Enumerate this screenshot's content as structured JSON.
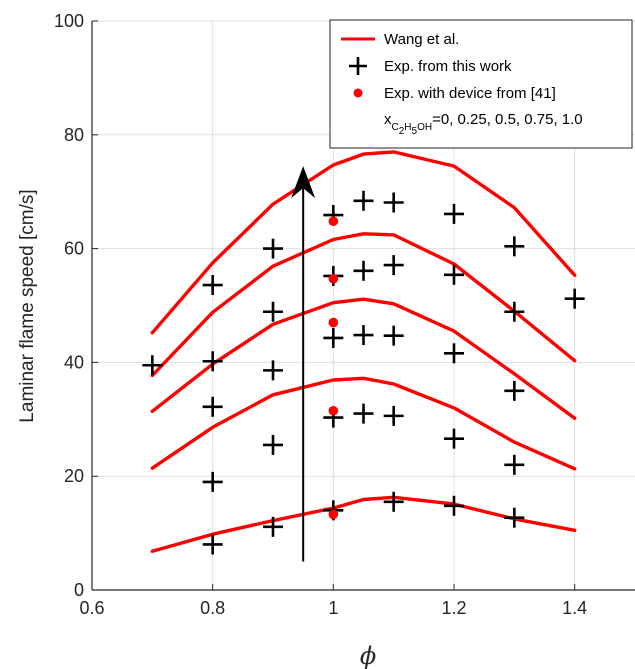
{
  "chart_data": {
    "type": "line",
    "xlabel": "ϕ",
    "ylabel": "Laminar flame speed [cm/s]",
    "xlim": [
      0.6,
      1.5
    ],
    "ylim": [
      0,
      100
    ],
    "xticks": [
      "0.6",
      "0.8",
      "1",
      "1.2",
      "1.4"
    ],
    "yticks": [
      "0",
      "20",
      "40",
      "60",
      "80",
      "100"
    ],
    "grid": true,
    "legend_position": "top-right",
    "legend": {
      "model_label": "Wang et al.",
      "exp_label": "Exp. from this work",
      "device_label": "Exp. with device from [41]",
      "x_prefix": "x",
      "sub_c": "C",
      "sub_2": "2",
      "sub_h": "H",
      "sub_5": "5",
      "sub_oh": "OH",
      "x_values": "=0, 0.25, 0.5, 0.75, 1.0"
    },
    "colors": {
      "model": "#ff0000",
      "exp": "#000000",
      "device": "#ff0000",
      "arrow": "#000000"
    },
    "model_x": [
      0.7,
      0.8,
      0.9,
      1.0,
      1.05,
      1.1,
      1.2,
      1.3,
      1.4
    ],
    "series": [
      {
        "model_y": [
          6.8,
          9.8,
          12.2,
          14.4,
          15.9,
          16.3,
          15.1,
          12.5,
          10.5
        ]
      },
      {
        "model_y": [
          21.4,
          28.6,
          34.3,
          36.9,
          37.2,
          36.2,
          32.0,
          26.0,
          21.3
        ]
      },
      {
        "model_y": [
          31.4,
          39.7,
          46.7,
          50.5,
          51.1,
          50.3,
          45.5,
          38.0,
          30.2
        ]
      },
      {
        "model_y": [
          37.7,
          48.8,
          56.9,
          61.6,
          62.6,
          62.4,
          57.3,
          49.0,
          40.3
        ]
      },
      {
        "model_y": [
          45.2,
          57.5,
          67.8,
          74.7,
          76.6,
          77.0,
          74.5,
          67.2,
          55.3
        ]
      }
    ],
    "experiments": [
      {
        "x": 0.8,
        "y": 8.0
      },
      {
        "x": 0.9,
        "y": 11.1
      },
      {
        "x": 1.0,
        "y": 14.0
      },
      {
        "x": 1.1,
        "y": 15.5
      },
      {
        "x": 1.2,
        "y": 14.8
      },
      {
        "x": 1.3,
        "y": 12.7
      },
      {
        "x": 0.8,
        "y": 19.0
      },
      {
        "x": 0.9,
        "y": 25.5
      },
      {
        "x": 1.0,
        "y": 30.3
      },
      {
        "x": 1.05,
        "y": 31.0
      },
      {
        "x": 1.1,
        "y": 30.6
      },
      {
        "x": 1.2,
        "y": 26.6
      },
      {
        "x": 1.3,
        "y": 22.0
      },
      {
        "x": 0.8,
        "y": 32.2
      },
      {
        "x": 0.9,
        "y": 38.6
      },
      {
        "x": 1.0,
        "y": 44.3
      },
      {
        "x": 1.05,
        "y": 44.8
      },
      {
        "x": 1.1,
        "y": 44.7
      },
      {
        "x": 1.2,
        "y": 41.6
      },
      {
        "x": 1.3,
        "y": 35.0
      },
      {
        "x": 0.7,
        "y": 39.5
      },
      {
        "x": 0.8,
        "y": 40.2
      },
      {
        "x": 0.9,
        "y": 48.9
      },
      {
        "x": 1.0,
        "y": 55.2
      },
      {
        "x": 1.05,
        "y": 56.1
      },
      {
        "x": 1.1,
        "y": 57.1
      },
      {
        "x": 1.2,
        "y": 55.4
      },
      {
        "x": 1.3,
        "y": 48.9
      },
      {
        "x": 0.8,
        "y": 53.6
      },
      {
        "x": 0.9,
        "y": 60.0
      },
      {
        "x": 1.0,
        "y": 65.9
      },
      {
        "x": 1.05,
        "y": 68.4
      },
      {
        "x": 1.1,
        "y": 68.1
      },
      {
        "x": 1.2,
        "y": 66.1
      },
      {
        "x": 1.3,
        "y": 60.4
      },
      {
        "x": 1.4,
        "y": 51.2
      }
    ],
    "device_points": [
      {
        "x": 1.0,
        "y": 13.3
      },
      {
        "x": 1.0,
        "y": 31.5
      },
      {
        "x": 1.0,
        "y": 47.0
      },
      {
        "x": 1.0,
        "y": 54.7
      },
      {
        "x": 1.0,
        "y": 64.8
      }
    ],
    "arrow": {
      "x": 0.95,
      "y_start": 5.0,
      "y_end": 74.5
    }
  }
}
